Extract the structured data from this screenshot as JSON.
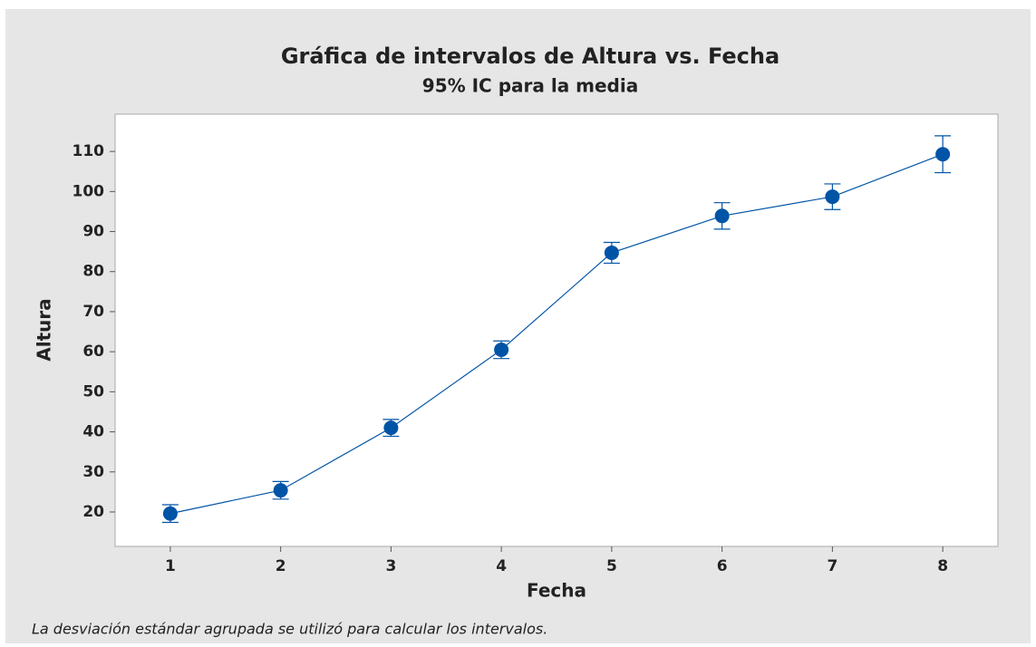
{
  "chart_data": {
    "type": "interval",
    "title": "Gráfica de intervalos de Altura vs. Fecha",
    "subtitle": "95% IC para la media",
    "x_label": "Fecha",
    "y_label": "Altura",
    "footnote": "La desviación estándar agrupada se utilizó para calcular los intervalos.",
    "x": [
      1,
      2,
      3,
      4,
      5,
      6,
      7,
      8
    ],
    "values": [
      19.6,
      25.4,
      41.0,
      60.5,
      84.7,
      93.9,
      98.7,
      109.3
    ],
    "errors": [
      2.2,
      2.2,
      2.1,
      2.2,
      2.6,
      3.3,
      3.2,
      4.6
    ],
    "color": "#0054a6",
    "xlim": [
      0.5,
      8.5
    ],
    "xticks": [
      1,
      2,
      3,
      4,
      5,
      6,
      7,
      8
    ],
    "ylim": [
      11.4,
      119.3
    ],
    "yticks": [
      20,
      30,
      40,
      50,
      60,
      70,
      80,
      90,
      100,
      110
    ]
  }
}
